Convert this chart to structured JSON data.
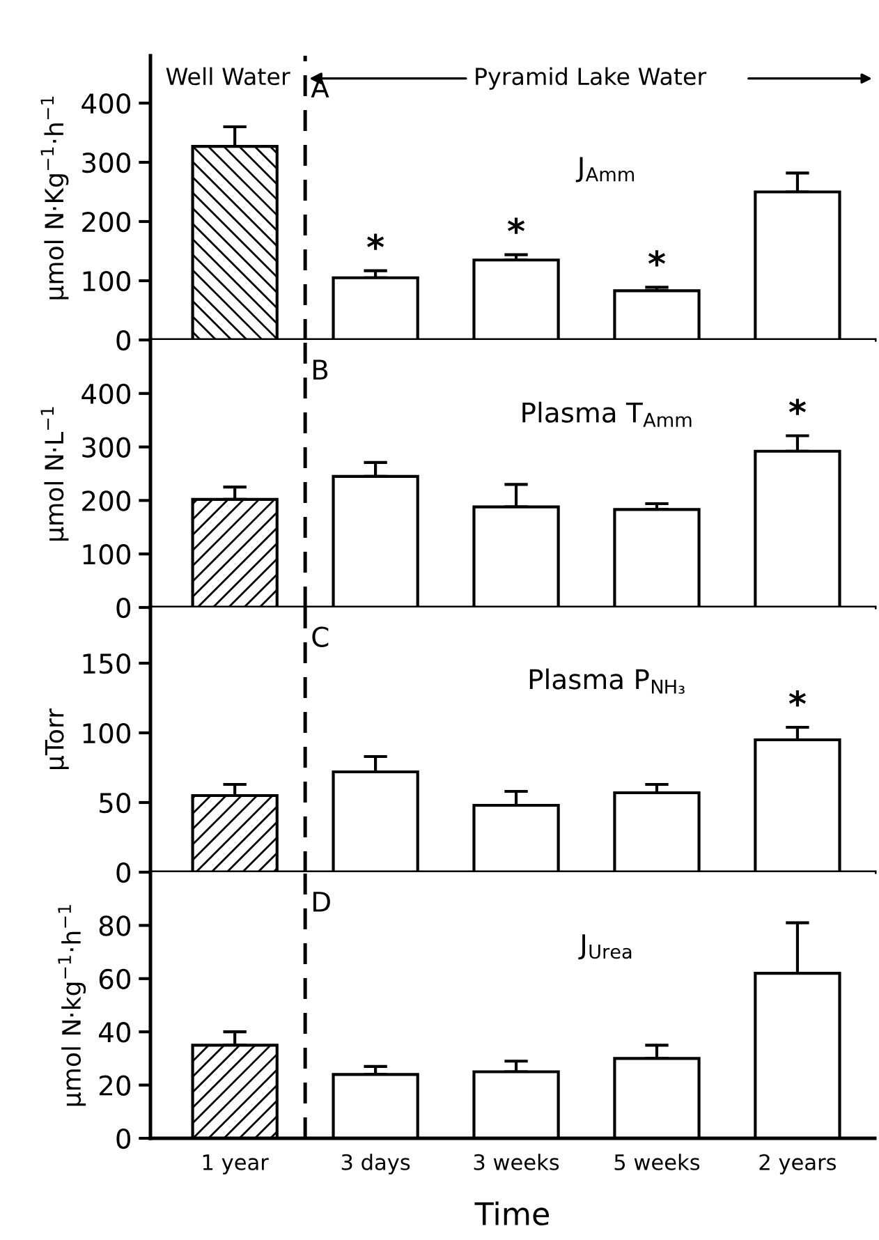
{
  "chart_data": [
    {
      "type": "bar",
      "title": "J$_{Amm}$",
      "ylabel": "µmol N·Kg$^{−1}$·h$^{−1}$",
      "categories": [
        "1 year",
        "3 days",
        "3 weeks",
        "5 weeks",
        "2 years"
      ],
      "values": [
        327,
        105,
        135,
        83,
        250
      ],
      "errors": [
        [
          327,
          360
        ],
        [
          105,
          117
        ],
        [
          135,
          144
        ],
        [
          83,
          89
        ],
        [
          250,
          282
        ]
      ],
      "colors": [
        "#000000",
        "#ffffff",
        "#ffffff",
        "#ffffff",
        "#ffffff"
      ],
      "ylim": [
        0,
        480
      ],
      "yticks": [
        0,
        100,
        200,
        300,
        400
      ],
      "tick_labels": "y",
      "annotations": [
        "Well Water",
        "Pyramid Lake Water",
        "A",
        {
          "text": "*",
          "x": "3 days",
          "y": 117
        },
        {
          "text": "*",
          "x": "3 weeks",
          "y": 144
        },
        {
          "text": "*",
          "x": "5 weeks",
          "y": 89
        }
      ]
    },
    {
      "type": "bar",
      "title": "Plasma T$_{Amm}$",
      "ylabel": "µmol N·L$^{−1}$",
      "categories": [
        "1 year",
        "3 days",
        "3 weeks",
        "5 weeks",
        "2 years"
      ],
      "values": [
        202,
        245,
        188,
        183,
        292
      ],
      "errors": [
        [
          202,
          225
        ],
        [
          245,
          271
        ],
        [
          188,
          230
        ],
        [
          183,
          194
        ],
        [
          292,
          321
        ]
      ],
      "colors": [
        "#000000",
        "#ffffff",
        "#ffffff",
        "#ffffff",
        "#ffffff"
      ],
      "ylim": [
        0,
        500
      ],
      "yticks": [
        0,
        100,
        200,
        300,
        400
      ],
      "tick_labels": "y",
      "annotations": [
        "B",
        {
          "text": "*",
          "x": "2 years",
          "y": 321
        }
      ]
    },
    {
      "type": "bar",
      "title": "Plasma P$_{NH₃}$",
      "ylabel": "µTorr",
      "categories": [
        "1 year",
        "3 days",
        "3 weeks",
        "5 weeks",
        "2 years"
      ],
      "values": [
        55,
        72,
        48,
        57,
        95
      ],
      "errors": [
        [
          55,
          63
        ],
        [
          72,
          83
        ],
        [
          48,
          58
        ],
        [
          57,
          63
        ],
        [
          95,
          104
        ]
      ],
      "colors": [
        "#000000",
        "#ffffff",
        "#ffffff",
        "#ffffff",
        "#ffffff"
      ],
      "ylim": [
        0,
        190
      ],
      "yticks": [
        0,
        50,
        100,
        150
      ],
      "tick_labels": "y",
      "annotations": [
        "C",
        {
          "text": "*",
          "x": "2 years",
          "y": 104
        }
      ]
    },
    {
      "type": "bar",
      "title": "J$_{Urea}$",
      "ylabel": "µmol N·kg$^{−1}$·h$^{−1}$",
      "xlabel": "Time",
      "categories": [
        "1 year",
        "3 days",
        "3 weeks",
        "5 weeks",
        "2 years"
      ],
      "values": [
        35,
        24,
        25,
        30,
        62
      ],
      "errors": [
        [
          35,
          40
        ],
        [
          24,
          27
        ],
        [
          25,
          29
        ],
        [
          30,
          35
        ],
        [
          62,
          81
        ]
      ],
      "colors": [
        "#000000",
        "#ffffff",
        "#ffffff",
        "#ffffff",
        "#ffffff"
      ],
      "ylim": [
        0,
        100
      ],
      "yticks": [
        0,
        20,
        40,
        60,
        80
      ],
      "annotations": [
        "D"
      ]
    }
  ]
}
